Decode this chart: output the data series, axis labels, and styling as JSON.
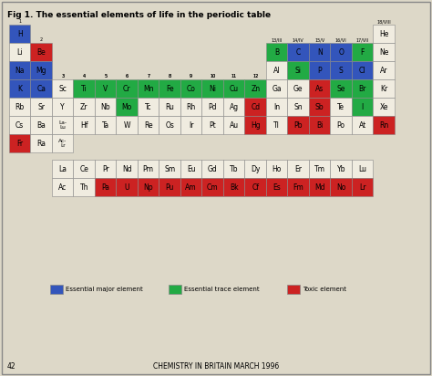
{
  "title": "Fig 1. The essential elements of life in the periodic table",
  "footer": "CHEMISTRY IN BRITAIN MARCH 1996",
  "page_num": "42",
  "bg_color": "#ddd8c8",
  "cell_edge": "#888888",
  "colors": {
    "blue": "#3355bb",
    "green": "#22aa44",
    "red": "#cc2222",
    "none": "#f0ece0"
  },
  "legend": [
    {
      "color": "#3355bb",
      "label": "Essential major element"
    },
    {
      "color": "#22aa44",
      "label": "Essential trace element"
    },
    {
      "color": "#cc2222",
      "label": "Toxic element"
    }
  ],
  "elements": [
    {
      "symbol": "H",
      "row": 0,
      "col": 0,
      "color": "blue",
      "group_label": "1"
    },
    {
      "symbol": "He",
      "row": 0,
      "col": 17,
      "color": "none",
      "group_label": "18/VIII"
    },
    {
      "symbol": "Li",
      "row": 1,
      "col": 0,
      "color": "none",
      "group_label": ""
    },
    {
      "symbol": "Be",
      "row": 1,
      "col": 1,
      "color": "red",
      "group_label": "2"
    },
    {
      "symbol": "B",
      "row": 1,
      "col": 12,
      "color": "green",
      "group_label": "13/III"
    },
    {
      "symbol": "C",
      "row": 1,
      "col": 13,
      "color": "blue",
      "group_label": "14/IV"
    },
    {
      "symbol": "N",
      "row": 1,
      "col": 14,
      "color": "blue",
      "group_label": "15/V"
    },
    {
      "symbol": "O",
      "row": 1,
      "col": 15,
      "color": "blue",
      "group_label": "16/VI"
    },
    {
      "symbol": "F",
      "row": 1,
      "col": 16,
      "color": "green",
      "group_label": "17/VII"
    },
    {
      "symbol": "Ne",
      "row": 1,
      "col": 17,
      "color": "none",
      "group_label": ""
    },
    {
      "symbol": "Na",
      "row": 2,
      "col": 0,
      "color": "blue",
      "group_label": ""
    },
    {
      "symbol": "Mg",
      "row": 2,
      "col": 1,
      "color": "blue",
      "group_label": ""
    },
    {
      "symbol": "Al",
      "row": 2,
      "col": 12,
      "color": "none",
      "group_label": ""
    },
    {
      "symbol": "Si",
      "row": 2,
      "col": 13,
      "color": "green",
      "group_label": ""
    },
    {
      "symbol": "P",
      "row": 2,
      "col": 14,
      "color": "blue",
      "group_label": ""
    },
    {
      "symbol": "S",
      "row": 2,
      "col": 15,
      "color": "blue",
      "group_label": ""
    },
    {
      "symbol": "Cl",
      "row": 2,
      "col": 16,
      "color": "blue",
      "group_label": ""
    },
    {
      "symbol": "Ar",
      "row": 2,
      "col": 17,
      "color": "none",
      "group_label": ""
    },
    {
      "symbol": "K",
      "row": 3,
      "col": 0,
      "color": "blue",
      "group_label": ""
    },
    {
      "symbol": "Ca",
      "row": 3,
      "col": 1,
      "color": "blue",
      "group_label": ""
    },
    {
      "symbol": "Sc",
      "row": 3,
      "col": 2,
      "color": "none",
      "group_label": "3"
    },
    {
      "symbol": "Ti",
      "row": 3,
      "col": 3,
      "color": "green",
      "group_label": "4"
    },
    {
      "symbol": "V",
      "row": 3,
      "col": 4,
      "color": "green",
      "group_label": "5"
    },
    {
      "symbol": "Cr",
      "row": 3,
      "col": 5,
      "color": "green",
      "group_label": "6"
    },
    {
      "symbol": "Mn",
      "row": 3,
      "col": 6,
      "color": "green",
      "group_label": "7"
    },
    {
      "symbol": "Fe",
      "row": 3,
      "col": 7,
      "color": "green",
      "group_label": "8"
    },
    {
      "symbol": "Co",
      "row": 3,
      "col": 8,
      "color": "green",
      "group_label": "9"
    },
    {
      "symbol": "Ni",
      "row": 3,
      "col": 9,
      "color": "green",
      "group_label": "10"
    },
    {
      "symbol": "Cu",
      "row": 3,
      "col": 10,
      "color": "green",
      "group_label": "11"
    },
    {
      "symbol": "Zn",
      "row": 3,
      "col": 11,
      "color": "green",
      "group_label": "12"
    },
    {
      "symbol": "Ga",
      "row": 3,
      "col": 12,
      "color": "none",
      "group_label": ""
    },
    {
      "symbol": "Ge",
      "row": 3,
      "col": 13,
      "color": "none",
      "group_label": ""
    },
    {
      "symbol": "As",
      "row": 3,
      "col": 14,
      "color": "red",
      "group_label": ""
    },
    {
      "symbol": "Se",
      "row": 3,
      "col": 15,
      "color": "green",
      "group_label": ""
    },
    {
      "symbol": "Br",
      "row": 3,
      "col": 16,
      "color": "green",
      "group_label": ""
    },
    {
      "symbol": "Kr",
      "row": 3,
      "col": 17,
      "color": "none",
      "group_label": ""
    },
    {
      "symbol": "Rb",
      "row": 4,
      "col": 0,
      "color": "none",
      "group_label": ""
    },
    {
      "symbol": "Sr",
      "row": 4,
      "col": 1,
      "color": "none",
      "group_label": ""
    },
    {
      "symbol": "Y",
      "row": 4,
      "col": 2,
      "color": "none",
      "group_label": ""
    },
    {
      "symbol": "Zr",
      "row": 4,
      "col": 3,
      "color": "none",
      "group_label": ""
    },
    {
      "symbol": "Nb",
      "row": 4,
      "col": 4,
      "color": "none",
      "group_label": ""
    },
    {
      "symbol": "Mo",
      "row": 4,
      "col": 5,
      "color": "green",
      "group_label": ""
    },
    {
      "symbol": "Tc",
      "row": 4,
      "col": 6,
      "color": "none",
      "group_label": ""
    },
    {
      "symbol": "Ru",
      "row": 4,
      "col": 7,
      "color": "none",
      "group_label": ""
    },
    {
      "symbol": "Rh",
      "row": 4,
      "col": 8,
      "color": "none",
      "group_label": ""
    },
    {
      "symbol": "Pd",
      "row": 4,
      "col": 9,
      "color": "none",
      "group_label": ""
    },
    {
      "symbol": "Ag",
      "row": 4,
      "col": 10,
      "color": "none",
      "group_label": ""
    },
    {
      "symbol": "Cd",
      "row": 4,
      "col": 11,
      "color": "red",
      "group_label": ""
    },
    {
      "symbol": "In",
      "row": 4,
      "col": 12,
      "color": "none",
      "group_label": ""
    },
    {
      "symbol": "Sn",
      "row": 4,
      "col": 13,
      "color": "none",
      "group_label": ""
    },
    {
      "symbol": "Sb",
      "row": 4,
      "col": 14,
      "color": "red",
      "group_label": ""
    },
    {
      "symbol": "Te",
      "row": 4,
      "col": 15,
      "color": "none",
      "group_label": ""
    },
    {
      "symbol": "I",
      "row": 4,
      "col": 16,
      "color": "green",
      "group_label": ""
    },
    {
      "symbol": "Xe",
      "row": 4,
      "col": 17,
      "color": "none",
      "group_label": ""
    },
    {
      "symbol": "Cs",
      "row": 5,
      "col": 0,
      "color": "none",
      "group_label": ""
    },
    {
      "symbol": "Ba",
      "row": 5,
      "col": 1,
      "color": "none",
      "group_label": ""
    },
    {
      "symbol": "La-Lu",
      "row": 5,
      "col": 2,
      "color": "none",
      "group_label": ""
    },
    {
      "symbol": "Hf",
      "row": 5,
      "col": 3,
      "color": "none",
      "group_label": ""
    },
    {
      "symbol": "Ta",
      "row": 5,
      "col": 4,
      "color": "none",
      "group_label": ""
    },
    {
      "symbol": "W",
      "row": 5,
      "col": 5,
      "color": "none",
      "group_label": ""
    },
    {
      "symbol": "Re",
      "row": 5,
      "col": 6,
      "color": "none",
      "group_label": ""
    },
    {
      "symbol": "Os",
      "row": 5,
      "col": 7,
      "color": "none",
      "group_label": ""
    },
    {
      "symbol": "Ir",
      "row": 5,
      "col": 8,
      "color": "none",
      "group_label": ""
    },
    {
      "symbol": "Pt",
      "row": 5,
      "col": 9,
      "color": "none",
      "group_label": ""
    },
    {
      "symbol": "Au",
      "row": 5,
      "col": 10,
      "color": "none",
      "group_label": ""
    },
    {
      "symbol": "Hg",
      "row": 5,
      "col": 11,
      "color": "red",
      "group_label": ""
    },
    {
      "symbol": "Tl",
      "row": 5,
      "col": 12,
      "color": "none",
      "group_label": ""
    },
    {
      "symbol": "Pb",
      "row": 5,
      "col": 13,
      "color": "red",
      "group_label": ""
    },
    {
      "symbol": "Bi",
      "row": 5,
      "col": 14,
      "color": "red",
      "group_label": ""
    },
    {
      "symbol": "Po",
      "row": 5,
      "col": 15,
      "color": "none",
      "group_label": ""
    },
    {
      "symbol": "At",
      "row": 5,
      "col": 16,
      "color": "none",
      "group_label": ""
    },
    {
      "symbol": "Rn",
      "row": 5,
      "col": 17,
      "color": "red",
      "group_label": ""
    },
    {
      "symbol": "Fr",
      "row": 6,
      "col": 0,
      "color": "red",
      "group_label": ""
    },
    {
      "symbol": "Ra",
      "row": 6,
      "col": 1,
      "color": "none",
      "group_label": ""
    },
    {
      "symbol": "Ac-Lr",
      "row": 6,
      "col": 2,
      "color": "none",
      "group_label": ""
    },
    {
      "symbol": "La",
      "row": 8,
      "col": 2,
      "color": "none",
      "group_label": ""
    },
    {
      "symbol": "Ce",
      "row": 8,
      "col": 3,
      "color": "none",
      "group_label": ""
    },
    {
      "symbol": "Pr",
      "row": 8,
      "col": 4,
      "color": "none",
      "group_label": ""
    },
    {
      "symbol": "Nd",
      "row": 8,
      "col": 5,
      "color": "none",
      "group_label": ""
    },
    {
      "symbol": "Pm",
      "row": 8,
      "col": 6,
      "color": "none",
      "group_label": ""
    },
    {
      "symbol": "Sm",
      "row": 8,
      "col": 7,
      "color": "none",
      "group_label": ""
    },
    {
      "symbol": "Eu",
      "row": 8,
      "col": 8,
      "color": "none",
      "group_label": ""
    },
    {
      "symbol": "Gd",
      "row": 8,
      "col": 9,
      "color": "none",
      "group_label": ""
    },
    {
      "symbol": "Tb",
      "row": 8,
      "col": 10,
      "color": "none",
      "group_label": ""
    },
    {
      "symbol": "Dy",
      "row": 8,
      "col": 11,
      "color": "none",
      "group_label": ""
    },
    {
      "symbol": "Ho",
      "row": 8,
      "col": 12,
      "color": "none",
      "group_label": ""
    },
    {
      "symbol": "Er",
      "row": 8,
      "col": 13,
      "color": "none",
      "group_label": ""
    },
    {
      "symbol": "Tm",
      "row": 8,
      "col": 14,
      "color": "none",
      "group_label": ""
    },
    {
      "symbol": "Yb",
      "row": 8,
      "col": 15,
      "color": "none",
      "group_label": ""
    },
    {
      "symbol": "Lu",
      "row": 8,
      "col": 16,
      "color": "none",
      "group_label": ""
    },
    {
      "symbol": "Ac",
      "row": 9,
      "col": 2,
      "color": "none",
      "group_label": ""
    },
    {
      "symbol": "Th",
      "row": 9,
      "col": 3,
      "color": "none",
      "group_label": ""
    },
    {
      "symbol": "Pa",
      "row": 9,
      "col": 4,
      "color": "red",
      "group_label": ""
    },
    {
      "symbol": "U",
      "row": 9,
      "col": 5,
      "color": "red",
      "group_label": ""
    },
    {
      "symbol": "Np",
      "row": 9,
      "col": 6,
      "color": "red",
      "group_label": ""
    },
    {
      "symbol": "Pu",
      "row": 9,
      "col": 7,
      "color": "red",
      "group_label": ""
    },
    {
      "symbol": "Am",
      "row": 9,
      "col": 8,
      "color": "red",
      "group_label": ""
    },
    {
      "symbol": "Cm",
      "row": 9,
      "col": 9,
      "color": "red",
      "group_label": ""
    },
    {
      "symbol": "Bk",
      "row": 9,
      "col": 10,
      "color": "red",
      "group_label": ""
    },
    {
      "symbol": "Cf",
      "row": 9,
      "col": 11,
      "color": "red",
      "group_label": ""
    },
    {
      "symbol": "Es",
      "row": 9,
      "col": 12,
      "color": "red",
      "group_label": ""
    },
    {
      "symbol": "Fm",
      "row": 9,
      "col": 13,
      "color": "red",
      "group_label": ""
    },
    {
      "symbol": "Md",
      "row": 9,
      "col": 14,
      "color": "red",
      "group_label": ""
    },
    {
      "symbol": "No",
      "row": 9,
      "col": 15,
      "color": "red",
      "group_label": ""
    },
    {
      "symbol": "Lr",
      "row": 9,
      "col": 16,
      "color": "red",
      "group_label": ""
    }
  ]
}
